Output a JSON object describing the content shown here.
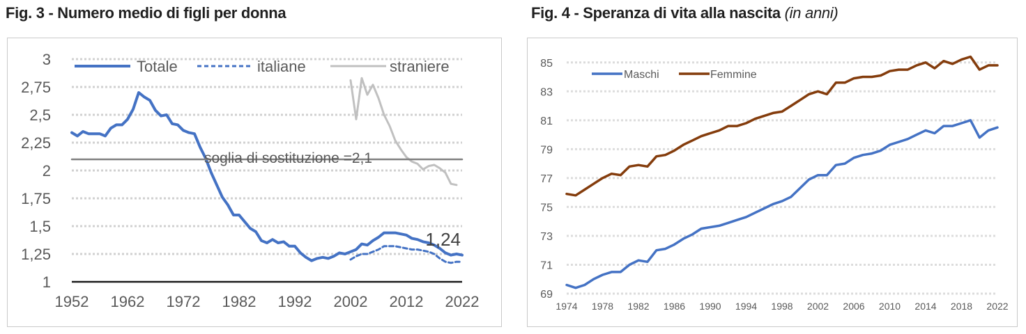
{
  "fig3": {
    "title": "Fig. 3 - Numero medio di figli per donna",
    "chart_data": {
      "type": "line",
      "title": "Fig. 3 - Numero medio di figli per donna",
      "ylim": [
        1,
        3
      ],
      "xlim": [
        1952,
        2022
      ],
      "y_ticks": [
        "1",
        "1,25",
        "1,5",
        "1,75",
        "2",
        "2,25",
        "2,5",
        "2,75",
        "3"
      ],
      "x_ticks": [
        "1952",
        "1962",
        "1972",
        "1982",
        "1992",
        "2002",
        "2012",
        "2022"
      ],
      "grid": true,
      "legend_position": "top",
      "series": [
        {
          "name": "Totale",
          "color": "#4472c4",
          "style": "solid",
          "x": [
            1952,
            1953,
            1954,
            1955,
            1956,
            1957,
            1958,
            1959,
            1960,
            1961,
            1962,
            1963,
            1964,
            1965,
            1966,
            1967,
            1968,
            1969,
            1970,
            1971,
            1972,
            1973,
            1974,
            1975,
            1976,
            1977,
            1978,
            1979,
            1980,
            1981,
            1982,
            1983,
            1984,
            1985,
            1986,
            1987,
            1988,
            1989,
            1990,
            1991,
            1992,
            1993,
            1994,
            1995,
            1996,
            1997,
            1998,
            1999,
            2000,
            2001,
            2002,
            2003,
            2004,
            2005,
            2006,
            2007,
            2008,
            2009,
            2010,
            2011,
            2012,
            2013,
            2014,
            2015,
            2016,
            2017,
            2018,
            2019,
            2020,
            2021,
            2022
          ],
          "y": [
            2.34,
            2.31,
            2.35,
            2.33,
            2.33,
            2.33,
            2.31,
            2.38,
            2.41,
            2.41,
            2.46,
            2.55,
            2.7,
            2.66,
            2.63,
            2.54,
            2.49,
            2.5,
            2.42,
            2.41,
            2.36,
            2.34,
            2.33,
            2.21,
            2.11,
            1.98,
            1.87,
            1.76,
            1.69,
            1.6,
            1.6,
            1.54,
            1.48,
            1.45,
            1.37,
            1.35,
            1.38,
            1.35,
            1.36,
            1.32,
            1.32,
            1.26,
            1.22,
            1.19,
            1.21,
            1.22,
            1.21,
            1.23,
            1.26,
            1.25,
            1.27,
            1.29,
            1.34,
            1.33,
            1.37,
            1.4,
            1.44,
            1.44,
            1.44,
            1.43,
            1.42,
            1.39,
            1.38,
            1.36,
            1.35,
            1.33,
            1.3,
            1.26,
            1.24,
            1.25,
            1.24
          ]
        },
        {
          "name": "italiane",
          "color": "#4472c4",
          "style": "dashed",
          "x": [
            2002,
            2003,
            2004,
            2005,
            2006,
            2007,
            2008,
            2009,
            2010,
            2011,
            2012,
            2013,
            2014,
            2015,
            2016,
            2017,
            2018,
            2019,
            2020,
            2021,
            2022
          ],
          "y": [
            1.2,
            1.23,
            1.25,
            1.25,
            1.27,
            1.29,
            1.32,
            1.32,
            1.32,
            1.31,
            1.3,
            1.29,
            1.29,
            1.28,
            1.27,
            1.25,
            1.21,
            1.18,
            1.17,
            1.18,
            1.18
          ]
        },
        {
          "name": "straniere",
          "color": "#c0c0c0",
          "style": "solid",
          "x": [
            2002,
            2003,
            2004,
            2005,
            2006,
            2007,
            2008,
            2009,
            2010,
            2011,
            2012,
            2013,
            2014,
            2015,
            2016,
            2017,
            2018,
            2019,
            2020,
            2021
          ],
          "y": [
            2.81,
            2.46,
            2.83,
            2.68,
            2.77,
            2.65,
            2.5,
            2.4,
            2.27,
            2.19,
            2.12,
            2.08,
            2.06,
            2.01,
            2.04,
            2.05,
            2.02,
            1.98,
            1.88,
            1.87
          ]
        },
        {
          "name": "soglia di sostituzione",
          "color": "#7f7f7f",
          "style": "solid",
          "x": [
            1952,
            2022
          ],
          "y": [
            2.1,
            2.1
          ]
        }
      ],
      "annotations": {
        "threshold_label": "soglia di sostituzione =2,1",
        "last_value_label": "1,24"
      }
    }
  },
  "fig4": {
    "title": "Fig. 4 - Speranza di vita alla nascita",
    "title_sub": "(in anni)",
    "chart_data": {
      "type": "line",
      "title": "Fig. 4 - Speranza di vita alla nascita (in anni)",
      "ylim": [
        69,
        86
      ],
      "xlim": [
        1974,
        2022
      ],
      "y_ticks": [
        "69",
        "71",
        "73",
        "75",
        "77",
        "79",
        "81",
        "83",
        "85"
      ],
      "x_ticks": [
        "1974",
        "1978",
        "1982",
        "1986",
        "1990",
        "1994",
        "1998",
        "2002",
        "2006",
        "2010",
        "2014",
        "2018",
        "2022"
      ],
      "grid": true,
      "legend_position": "top-left",
      "series": [
        {
          "name": "Maschi",
          "color": "#4472c4",
          "x": [
            1974,
            1975,
            1976,
            1977,
            1978,
            1979,
            1980,
            1981,
            1982,
            1983,
            1984,
            1985,
            1986,
            1987,
            1988,
            1989,
            1990,
            1991,
            1992,
            1993,
            1994,
            1995,
            1996,
            1997,
            1998,
            1999,
            2000,
            2001,
            2002,
            2003,
            2004,
            2005,
            2006,
            2007,
            2008,
            2009,
            2010,
            2011,
            2012,
            2013,
            2014,
            2015,
            2016,
            2017,
            2018,
            2019,
            2020,
            2021,
            2022
          ],
          "y": [
            69.6,
            69.4,
            69.6,
            70.0,
            70.3,
            70.5,
            70.5,
            71.0,
            71.3,
            71.2,
            72.0,
            72.1,
            72.4,
            72.8,
            73.1,
            73.5,
            73.6,
            73.7,
            73.9,
            74.1,
            74.3,
            74.6,
            74.9,
            75.2,
            75.4,
            75.7,
            76.3,
            76.9,
            77.2,
            77.2,
            77.9,
            78.0,
            78.4,
            78.6,
            78.7,
            78.9,
            79.3,
            79.5,
            79.7,
            80.0,
            80.3,
            80.1,
            80.6,
            80.6,
            80.8,
            81.0,
            79.8,
            80.3,
            80.5
          ]
        },
        {
          "name": "Femmine",
          "color": "#843c0c",
          "x": [
            1974,
            1975,
            1976,
            1977,
            1978,
            1979,
            1980,
            1981,
            1982,
            1983,
            1984,
            1985,
            1986,
            1987,
            1988,
            1989,
            1990,
            1991,
            1992,
            1993,
            1994,
            1995,
            1996,
            1997,
            1998,
            1999,
            2000,
            2001,
            2002,
            2003,
            2004,
            2005,
            2006,
            2007,
            2008,
            2009,
            2010,
            2011,
            2012,
            2013,
            2014,
            2015,
            2016,
            2017,
            2018,
            2019,
            2020,
            2021,
            2022
          ],
          "y": [
            75.9,
            75.8,
            76.2,
            76.6,
            77.0,
            77.3,
            77.2,
            77.8,
            77.9,
            77.8,
            78.5,
            78.6,
            78.9,
            79.3,
            79.6,
            79.9,
            80.1,
            80.3,
            80.6,
            80.6,
            80.8,
            81.1,
            81.3,
            81.5,
            81.6,
            82.0,
            82.4,
            82.8,
            83.0,
            82.8,
            83.6,
            83.6,
            83.9,
            84.0,
            84.0,
            84.1,
            84.4,
            84.5,
            84.5,
            84.8,
            85.0,
            84.6,
            85.1,
            84.9,
            85.2,
            85.4,
            84.5,
            84.8,
            84.8
          ]
        }
      ]
    }
  }
}
